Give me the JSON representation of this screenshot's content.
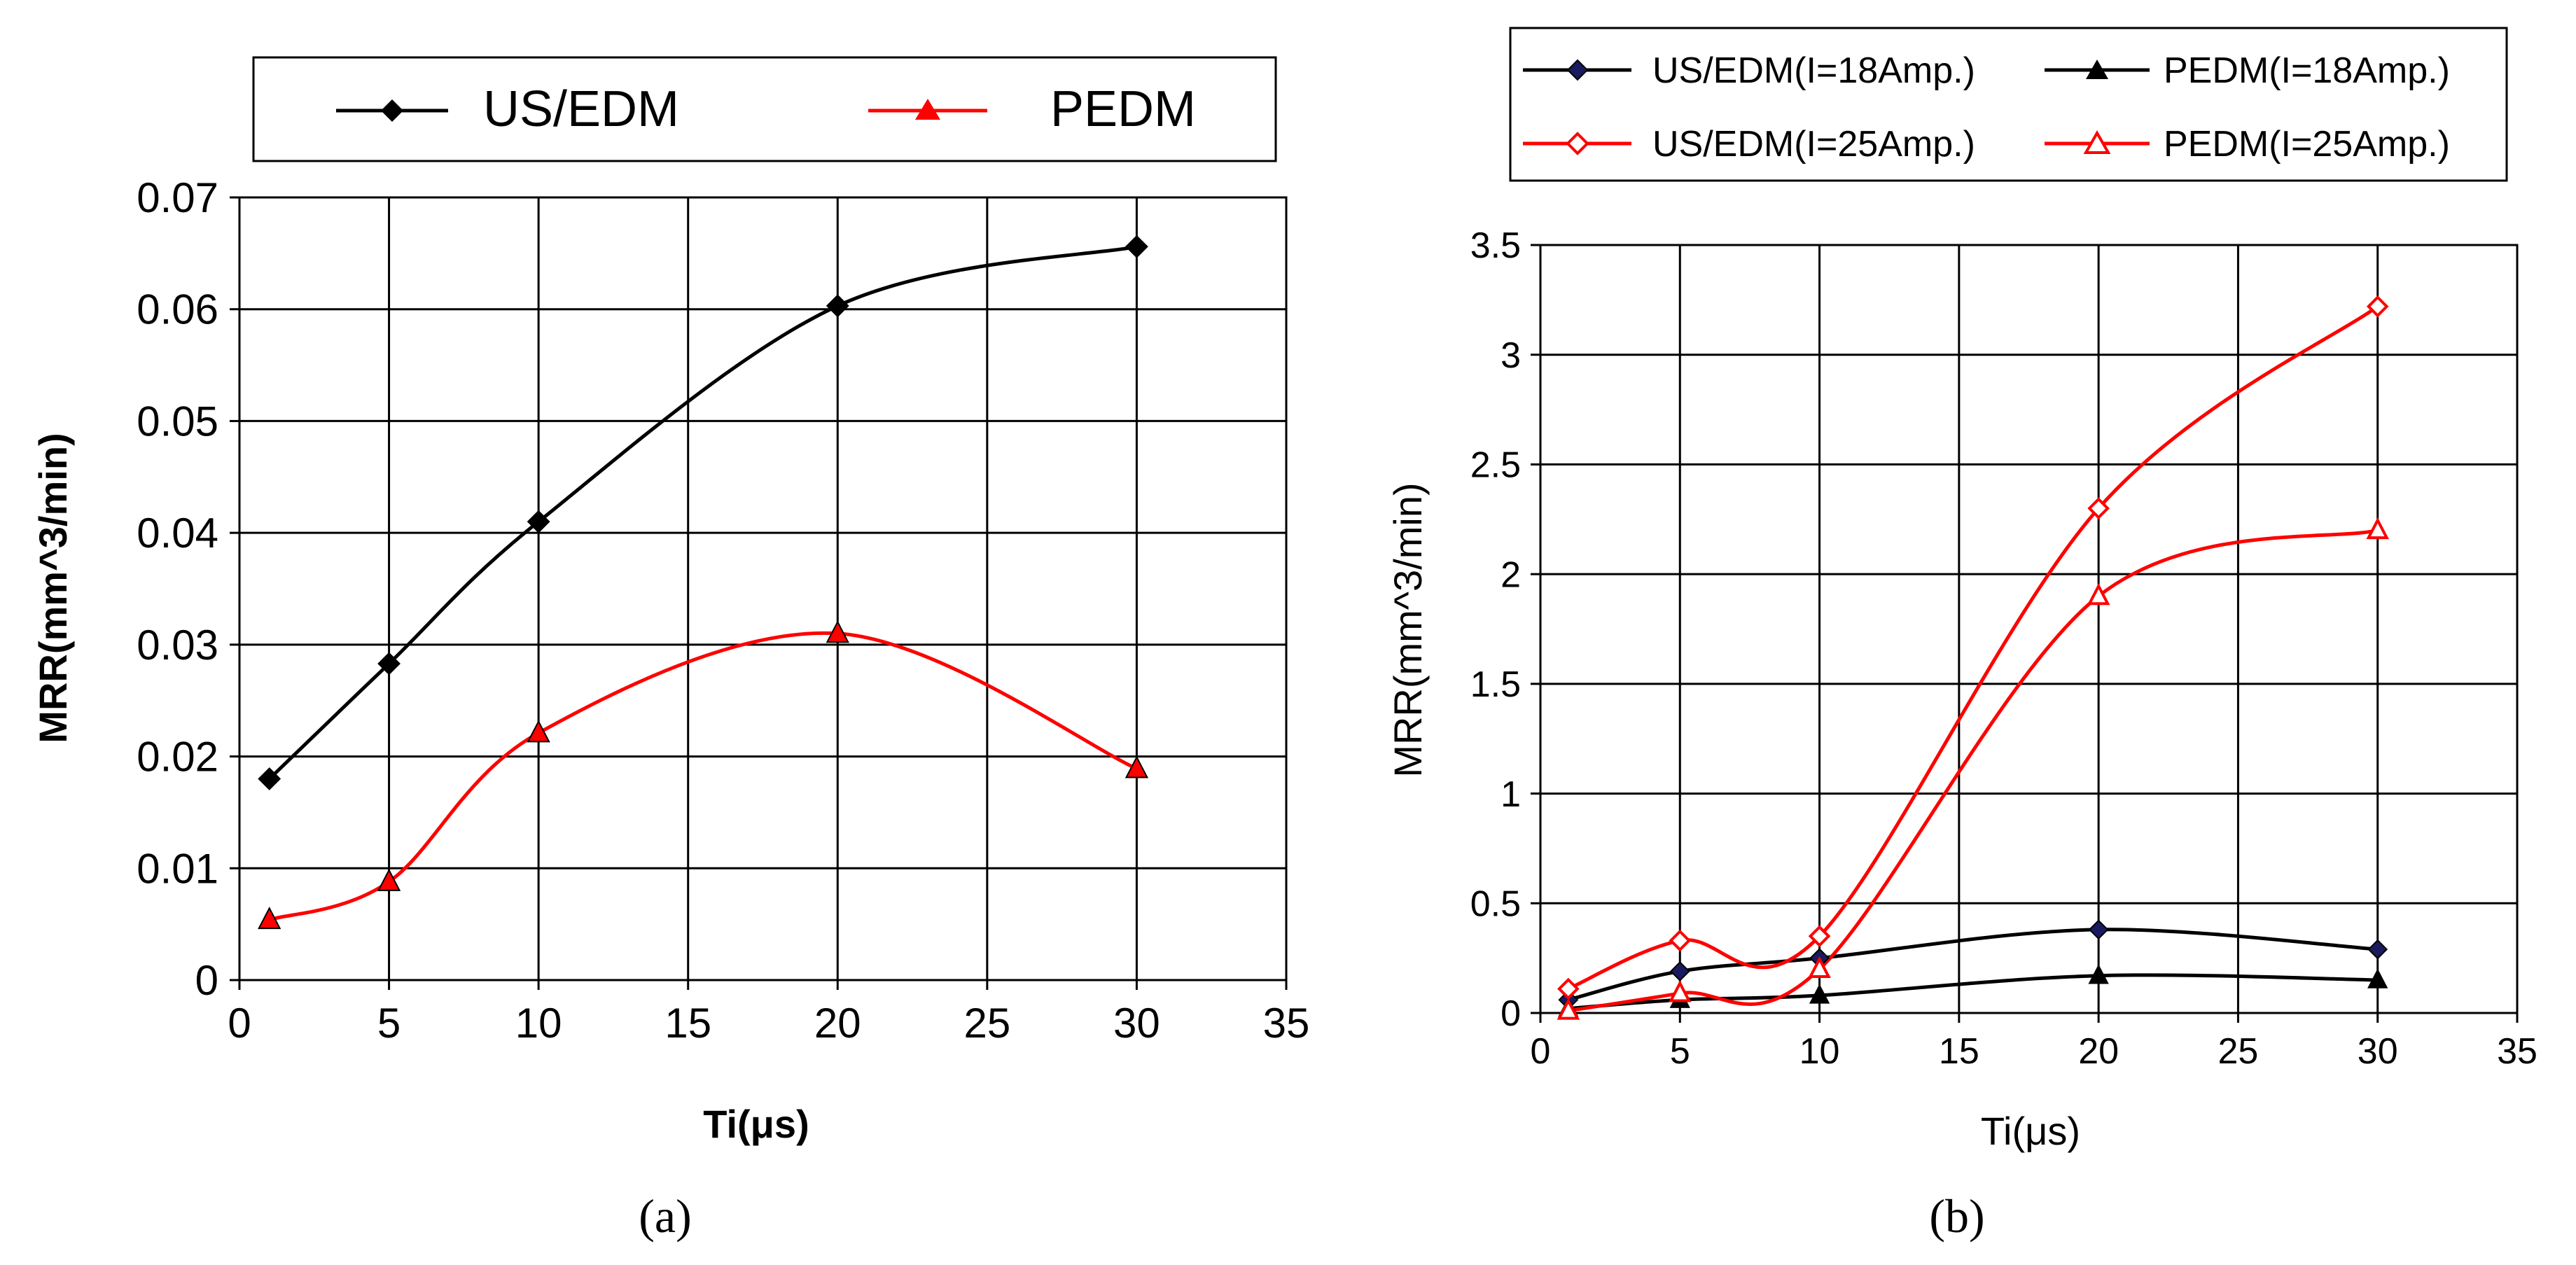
{
  "chart_data": [
    {
      "type": "line",
      "panel_label": "(a)",
      "title": "",
      "xlabel": "Ti(μs)",
      "ylabel": "MRR(mm^3/min)",
      "xlim": [
        0,
        35
      ],
      "ylim": [
        0,
        0.07
      ],
      "xticks": [
        "0",
        "5",
        "10",
        "15",
        "20",
        "25",
        "30",
        "35"
      ],
      "yticks": [
        "0",
        "0.01",
        "0.02",
        "0.03",
        "0.04",
        "0.05",
        "0.06",
        "0.07"
      ],
      "grid": true,
      "legend_position": "top",
      "series": [
        {
          "name": "US/EDM",
          "marker": "diamond",
          "filled": true,
          "color": "#000000",
          "x": [
            1,
            5,
            10,
            20,
            30
          ],
          "values": [
            0.018,
            0.0283,
            0.041,
            0.0603,
            0.0656
          ]
        },
        {
          "name": "PEDM",
          "marker": "triangle",
          "filled": true,
          "color": "#ff0000",
          "x": [
            1,
            5,
            10,
            20,
            30
          ],
          "values": [
            0.0054,
            0.0088,
            0.0221,
            0.031,
            0.0189
          ]
        }
      ]
    },
    {
      "type": "line",
      "panel_label": "(b)",
      "title": "",
      "xlabel": "Ti(μs)",
      "ylabel": "MRR(mm^3/min)",
      "xlim": [
        0,
        35
      ],
      "ylim": [
        0,
        3.5
      ],
      "xticks": [
        "0",
        "5",
        "10",
        "15",
        "20",
        "25",
        "30",
        "35"
      ],
      "yticks": [
        "0",
        "0.5",
        "1",
        "1.5",
        "2",
        "2.5",
        "3",
        "3.5"
      ],
      "grid": true,
      "legend_position": "top",
      "series": [
        {
          "name": "US/EDM(I=18Amp.)",
          "marker": "diamond",
          "filled": true,
          "color": "#000000",
          "markerColor": "#1a1a5e",
          "x": [
            1,
            5,
            10,
            20,
            30
          ],
          "values": [
            0.06,
            0.19,
            0.25,
            0.38,
            0.29
          ]
        },
        {
          "name": "PEDM(I=18Amp.)",
          "marker": "triangle",
          "filled": true,
          "color": "#000000",
          "markerColor": "#000000",
          "x": [
            1,
            5,
            10,
            20,
            30
          ],
          "values": [
            0.02,
            0.06,
            0.08,
            0.17,
            0.15
          ]
        },
        {
          "name": "US/EDM(I=25Amp.)",
          "marker": "diamond",
          "filled": false,
          "color": "#ff0000",
          "markerColor": "#ff0000",
          "x": [
            1,
            5,
            10,
            20,
            30
          ],
          "values": [
            0.11,
            0.33,
            0.35,
            2.3,
            3.22
          ]
        },
        {
          "name": "PEDM(I=25Amp.)",
          "marker": "triangle",
          "filled": false,
          "color": "#ff0000",
          "markerColor": "#ff0000",
          "x": [
            1,
            5,
            10,
            20,
            30
          ],
          "values": [
            0.01,
            0.09,
            0.2,
            1.9,
            2.2
          ]
        }
      ]
    }
  ]
}
